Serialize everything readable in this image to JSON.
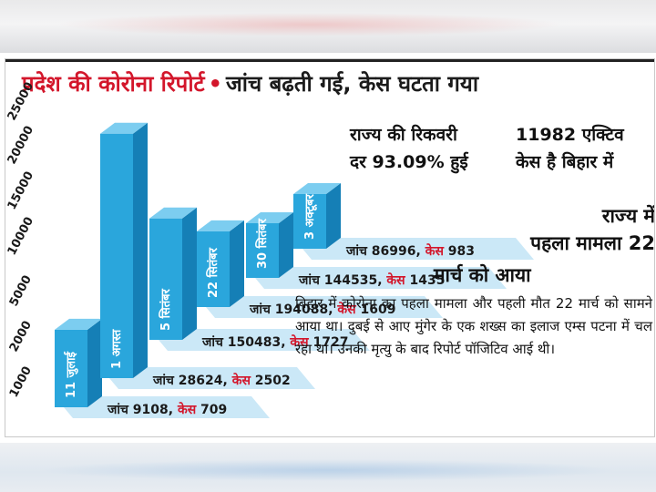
{
  "title": {
    "part1": "प्रदेश की कोरोना रिपोर्ट",
    "separator": "•",
    "part2": "जांच बढ़ती गई, केस घटता गया"
  },
  "colors": {
    "title_red": "#d3162b",
    "bar_front": "#2aa6dc",
    "bar_side": "#157fb6",
    "bar_top": "#7ccdf0",
    "strip": "#cbe8f7"
  },
  "chart_data": {
    "type": "bar",
    "title": "प्रदेश की कोरोना रिपोर्ट",
    "categories": [
      "11 जुलाई",
      "1 अगस्त",
      "5 सितंबर",
      "22 सितंबर",
      "30 सितंबर",
      "3 अक्टूबर"
    ],
    "series": [
      {
        "name": "जांच",
        "values": [
          9108,
          28624,
          150483,
          194088,
          144535,
          86996
        ]
      },
      {
        "name": "केस",
        "values": [
          709,
          2502,
          1727,
          1609,
          1435,
          983
        ]
      }
    ],
    "bar_values": [
      709,
      2502,
      1727,
      1609,
      1435,
      983
    ],
    "y_ticks": [
      "1000",
      "2000",
      "5000",
      "10000",
      "15000",
      "20000",
      "25000"
    ],
    "labels": [
      {
        "test_word": "जांच",
        "test_value": "9108",
        "case_word": "केस",
        "case_value": "709"
      },
      {
        "test_word": "जांच",
        "test_value": "28624",
        "case_word": "केस",
        "case_value": "2502"
      },
      {
        "test_word": "जांच",
        "test_value": "150483",
        "case_word": "केस",
        "case_value": "1727"
      },
      {
        "test_word": "जांच",
        "test_value": "194088",
        "case_word": "केस",
        "case_value": "1609"
      },
      {
        "test_word": "जांच",
        "test_value": "144535",
        "case_word": "केस",
        "case_value": "1435"
      },
      {
        "test_word": "जांच",
        "test_value": "86996",
        "case_word": "केस",
        "case_value": "983"
      }
    ]
  },
  "panels": {
    "recovery_line1": "राज्य की रिकवरी",
    "recovery_line2": "दर 93.09% हुई",
    "active_line1": "11982 एक्टिव",
    "active_line2": "केस है बिहार में",
    "first_case_line1": "राज्य में",
    "first_case_line2": "पहला मामला 22",
    "first_case_line3": "मार्च को आया",
    "story": "बिहार में कोरोना का पहला मामला और पहली मौत 22 मार्च को सामने आया था। दुबई से आए मुंगेर के एक शख्स का इलाज एम्स पटना में चल रहा था। उनकी मृत्यु के बाद रिपोर्ट पॉजिटिव आई थी।"
  }
}
